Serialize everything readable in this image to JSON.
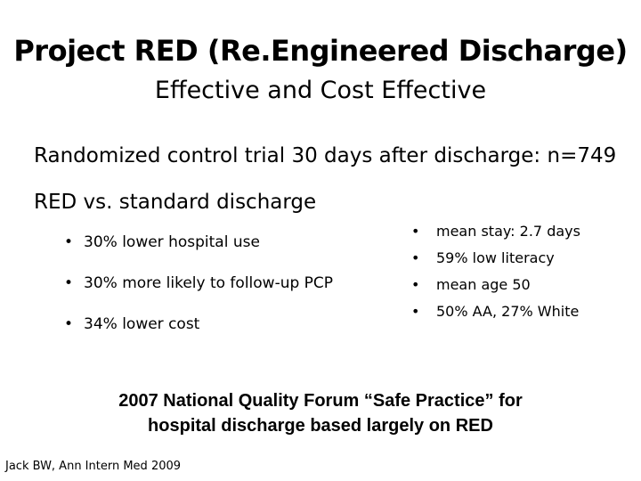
{
  "slide": {
    "title": "Project RED (Re.Engineered Discharge)",
    "subtitle": "Effective and Cost Effective",
    "trial_line": "Randomized control trial 30 days after discharge: n=749",
    "comparison_line": "RED vs. standard discharge",
    "bullet_symbol": "•",
    "left_bullets": [
      "30% lower hospital use",
      "30% more likely to follow-up PCP",
      "34% lower cost"
    ],
    "right_bullets": [
      "mean stay: 2.7 days",
      "59% low literacy",
      "mean age 50",
      "50% AA, 27% White"
    ],
    "nqf_line1": "2007 National Quality Forum “Safe Practice” for",
    "nqf_line2": "hospital discharge based largely on RED",
    "citation": "Jack BW, Ann Intern Med 2009"
  }
}
